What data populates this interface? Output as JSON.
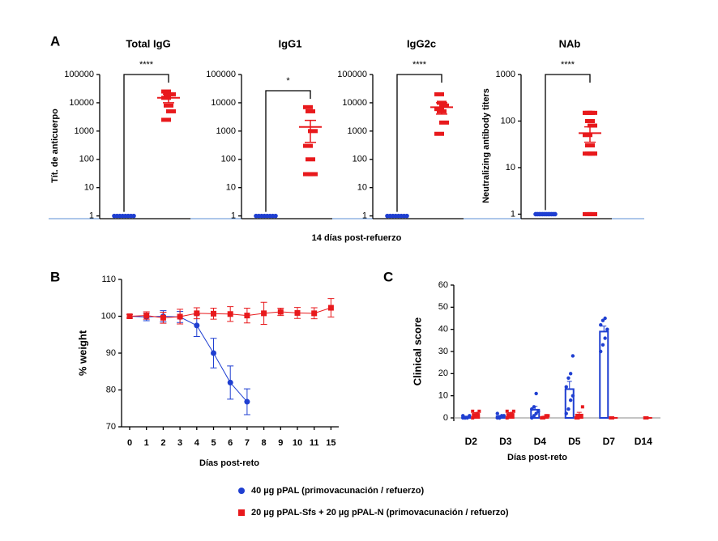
{
  "chart_data": [
    {
      "type": "dot",
      "panel": "A",
      "title": "Total IgG",
      "ylabel": "Tít. de anticuerpo",
      "xlabel": "14 días post-refuerzo",
      "significance": "****",
      "log": true,
      "ylim": [
        0.8,
        100000
      ],
      "yticks": [
        1,
        10,
        100,
        1000,
        10000,
        100000
      ],
      "series": [
        {
          "color": "#1f3fd1",
          "values": [
            1,
            1,
            1,
            1,
            1,
            1,
            1,
            1
          ],
          "mean": 1,
          "sem": 0
        },
        {
          "color": "#e8191c",
          "values": [
            25000,
            20000,
            20000,
            15000,
            8000,
            5000,
            2500
          ],
          "mean": 15000,
          "sem": 5000
        }
      ]
    },
    {
      "type": "dot",
      "title": "IgG1",
      "significance": "*",
      "log": true,
      "ylim": [
        0.8,
        100000
      ],
      "yticks": [
        1,
        10,
        100,
        1000,
        10000,
        100000
      ],
      "series": [
        {
          "color": "#1f3fd1",
          "values": [
            1,
            1,
            1,
            1,
            1,
            1,
            1,
            1
          ],
          "mean": 1,
          "sem": 0
        },
        {
          "color": "#e8191c",
          "values": [
            7000,
            5000,
            1000,
            300,
            100,
            30,
            30,
            30
          ],
          "mean": 1400,
          "sem": 1000
        }
      ]
    },
    {
      "type": "dot",
      "title": "IgG2c",
      "significance": "****",
      "log": true,
      "ylim": [
        0.8,
        100000
      ],
      "yticks": [
        1,
        10,
        100,
        1000,
        10000,
        100000
      ],
      "series": [
        {
          "color": "#1f3fd1",
          "values": [
            1,
            1,
            1,
            1,
            1,
            1,
            1,
            1
          ],
          "mean": 1,
          "sem": 0
        },
        {
          "color": "#e8191c",
          "values": [
            20000,
            10000,
            8000,
            6000,
            5000,
            2000,
            800
          ],
          "mean": 7000,
          "sem": 3000
        }
      ]
    },
    {
      "type": "dot",
      "title": "NAb",
      "ylabel": "Neutralizing antibody  titers",
      "significance": "****",
      "log": true,
      "ylim": [
        0.8,
        1000
      ],
      "yticks": [
        1,
        10,
        100,
        1000
      ],
      "series": [
        {
          "color": "#1f3fd1",
          "values": [
            1,
            1,
            1,
            1,
            1,
            1,
            1,
            1,
            1,
            1,
            1,
            1
          ],
          "mean": 1,
          "sem": 0
        },
        {
          "color": "#e8191c",
          "values": [
            150,
            150,
            150,
            150,
            100,
            80,
            50,
            30,
            20,
            20,
            20,
            20,
            1,
            1,
            1
          ],
          "mean": 55,
          "sem": 20
        }
      ]
    },
    {
      "type": "line",
      "panel": "B",
      "ylabel": "% weight",
      "xlabel": "Días post-reto",
      "categories": [
        "0",
        "1",
        "2",
        "3",
        "4",
        "5",
        "6",
        "7",
        "8",
        "9",
        "10",
        "11",
        "15"
      ],
      "ylim": [
        70,
        110
      ],
      "yticks": [
        70,
        80,
        90,
        100,
        110
      ],
      "series": [
        {
          "name": "40 µg pPAL (primovacunación / refuerzo)",
          "color": "#1f3fd1",
          "marker": "circle",
          "values": [
            100,
            99.8,
            100,
            99.8,
            97.5,
            90,
            82,
            76.8,
            null,
            null,
            null,
            null,
            null
          ],
          "errors": [
            0.5,
            1,
            1.5,
            1.5,
            3,
            4,
            4.5,
            3.5,
            null,
            null,
            null,
            null,
            null
          ]
        },
        {
          "name": "20 µg pPAL-Sfs + 20 µg pPAL-N (primovacunación / refuerzo)",
          "color": "#e8191c",
          "marker": "square",
          "values": [
            100,
            100.2,
            99.6,
            99.9,
            100.8,
            100.7,
            100.6,
            100.2,
            100.8,
            101.2,
            100.9,
            100.8,
            102.3
          ],
          "errors": [
            0.5,
            1,
            1.5,
            2,
            1.5,
            1.5,
            2,
            2,
            3,
            1,
            1.5,
            1.5,
            2.5
          ]
        }
      ]
    },
    {
      "type": "bar",
      "panel": "C",
      "ylabel": "Clinical score",
      "xlabel": "Días post-reto",
      "categories": [
        "D2",
        "D3",
        "D4",
        "D5",
        "D7",
        "D14"
      ],
      "ylim": [
        0,
        60
      ],
      "yticks": [
        0,
        10,
        20,
        30,
        40,
        50,
        60
      ],
      "series": [
        {
          "color": "#1f3fd1",
          "values": [
            0.5,
            0.7,
            3.7,
            13,
            39,
            null
          ],
          "errors": [
            0.3,
            0.4,
            1.5,
            3.5,
            2.5,
            null
          ],
          "points": [
            [
              0,
              0,
              0,
              1,
              1,
              0
            ],
            [
              0,
              0,
              1,
              1,
              2,
              0
            ],
            [
              0,
              1,
              2,
              3,
              4,
              5,
              11
            ],
            [
              2,
              4,
              8,
              10,
              14,
              18,
              20,
              28
            ],
            [
              30,
              33,
              36,
              40,
              42,
              44,
              45
            ],
            []
          ]
        },
        {
          "color": "#e8191c",
          "values": [
            1.8,
            1.8,
            0.5,
            1.5,
            0,
            0
          ],
          "errors": [
            0.6,
            0.6,
            0.3,
            1,
            0,
            0
          ],
          "points": [
            [
              0,
              1,
              2,
              3,
              3
            ],
            [
              0,
              1,
              2,
              3,
              3
            ],
            [
              0,
              0,
              1,
              1
            ],
            [
              0,
              0,
              1,
              5
            ],
            [
              0,
              0
            ],
            [
              0,
              0
            ]
          ]
        }
      ]
    }
  ]
}
